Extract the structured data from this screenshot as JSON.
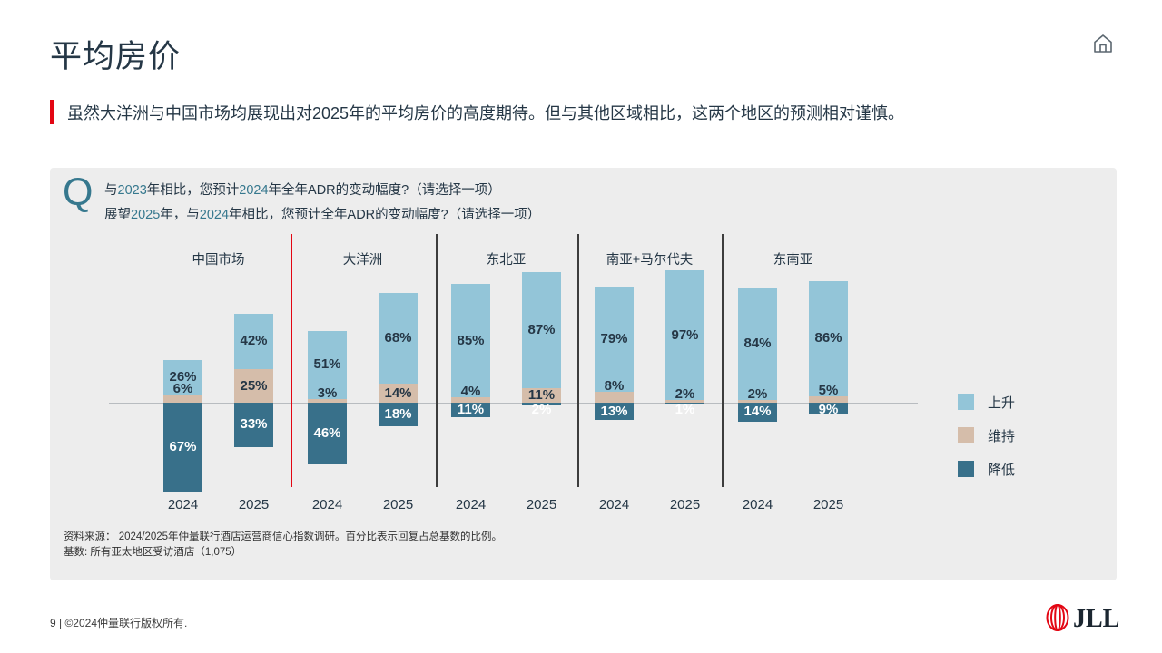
{
  "page": {
    "title": "平均房价",
    "subtitle": "虽然大洋洲与中国市场均展现出对2025年的平均房价的高度期待。但与其他区域相比，这两个地区的预测相对谨慎。",
    "footer": "9 | ©2024仲量联行版权所有.",
    "logo_text": "JLL"
  },
  "question": {
    "mark": "Q",
    "lines": [
      {
        "segments": [
          {
            "text": "与"
          },
          {
            "text": "2023",
            "accent": true
          },
          {
            "text": "年相比，您预计"
          },
          {
            "text": "2024",
            "accent": true
          },
          {
            "text": "年全年ADR的变动幅度?（请选择一项）"
          }
        ]
      },
      {
        "segments": [
          {
            "text": "展望"
          },
          {
            "text": "2025",
            "accent": true
          },
          {
            "text": "年，与"
          },
          {
            "text": "2024",
            "accent": true
          },
          {
            "text": "年相比，您预计全年ADR的变动幅度?（请选择一项）"
          }
        ]
      }
    ]
  },
  "chart_data": {
    "type": "bar",
    "stacked": true,
    "diverging": true,
    "unit": "%",
    "legend_position": "right",
    "series_keys": [
      "up",
      "keep",
      "down"
    ],
    "groups": [
      {
        "label": "中国市场",
        "bars": [
          {
            "year": "2024",
            "up": 26,
            "keep": 6,
            "down": 67
          },
          {
            "year": "2025",
            "up": 42,
            "keep": 25,
            "down": 33
          }
        ]
      },
      {
        "label": "大洋洲",
        "bars": [
          {
            "year": "2024",
            "up": 51,
            "keep": 3,
            "down": 46
          },
          {
            "year": "2025",
            "up": 68,
            "keep": 14,
            "down": 18
          }
        ]
      },
      {
        "label": "东北亚",
        "bars": [
          {
            "year": "2024",
            "up": 85,
            "keep": 4,
            "down": 11
          },
          {
            "year": "2025",
            "up": 87,
            "keep": 11,
            "down": 2
          }
        ]
      },
      {
        "label": "南亚+马尔代夫",
        "bars": [
          {
            "year": "2024",
            "up": 79,
            "keep": 8,
            "down": 13
          },
          {
            "year": "2025",
            "up": 97,
            "keep": 2,
            "down": 1
          }
        ]
      },
      {
        "label": "东南亚",
        "bars": [
          {
            "year": "2024",
            "up": 84,
            "keep": 2,
            "down": 14
          },
          {
            "year": "2025",
            "up": 86,
            "keep": 5,
            "down": 9
          }
        ]
      }
    ],
    "legend": [
      {
        "label": "上升",
        "color": "#93C5D8"
      },
      {
        "label": "维持",
        "color": "#D5BDAA"
      },
      {
        "label": "降低",
        "color": "#38708A"
      }
    ]
  },
  "source": {
    "line1": "资料来源： 2024/2025年仲量联行酒店运营商信心指数调研。百分比表示回复占总基数的比例。",
    "line2": "基数: 所有亚太地区受访酒店（1,075）"
  },
  "colors": {
    "dark": "#253746",
    "red": "#E30613",
    "teal": "#36788E",
    "panel": "#EDEDED",
    "up": "#93C5D8",
    "keep": "#D5BDAA",
    "down": "#38708A",
    "baseline": "#B8BCC0",
    "divider": "#3D3D3D"
  }
}
